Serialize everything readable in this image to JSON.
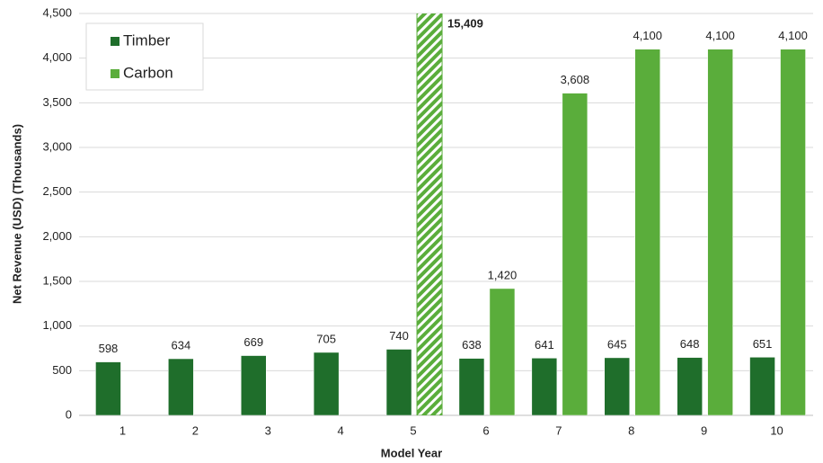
{
  "chart_data": {
    "type": "bar",
    "x_label": "Model Year",
    "y_label": "Net Revenue (USD) (Thousands)",
    "categories": [
      "1",
      "2",
      "3",
      "4",
      "5",
      "6",
      "7",
      "8",
      "9",
      "10"
    ],
    "series": [
      {
        "name": "Timber",
        "color": "#1f6e2b",
        "values": [
          598,
          634,
          669,
          705,
          740,
          638,
          641,
          645,
          648,
          651
        ]
      },
      {
        "name": "Carbon",
        "color": "#5aad3b",
        "values": [
          null,
          null,
          null,
          null,
          15409,
          1420,
          3608,
          4100,
          4100,
          4100
        ],
        "value_labels": [
          null,
          null,
          null,
          null,
          "15,409",
          "1,420",
          "3,608",
          "4,100",
          "4,100",
          "4,100"
        ]
      }
    ],
    "ylim": [
      0,
      4500
    ],
    "yticks": [
      0,
      500,
      {
        "value": 1000,
        "label": "1,000"
      },
      {
        "value": 1500,
        "label": "1,500"
      },
      {
        "value": 2000,
        "label": "2,000"
      },
      {
        "value": 2500,
        "label": "2,500"
      },
      {
        "value": 3000,
        "label": "3,000"
      },
      {
        "value": 3500,
        "label": "3,500"
      },
      {
        "value": 4000,
        "label": "4,000"
      },
      {
        "value": 4500,
        "label": "4,500"
      }
    ],
    "grid": true,
    "legend": "upper left"
  }
}
